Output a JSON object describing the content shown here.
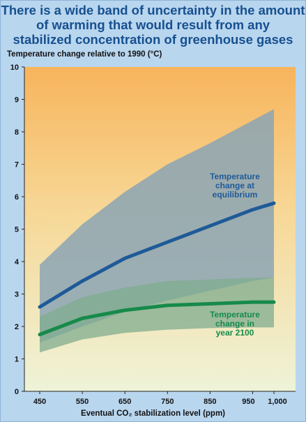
{
  "title": "There is a wide band of uncertainty in the amount\nof warming that would result from any\nstabilized concentration of greenhouse gases",
  "chart_data": {
    "type": "area",
    "title": "There is a wide band of uncertainty in the amount of warming that would result from any stabilized concentration of greenhouse gases",
    "ylabel": "Temperature change relative to 1990 (°C)",
    "xlabel": "Eventual CO₂ stabilization level (ppm)",
    "xlim": [
      450,
      1000
    ],
    "ylim": [
      0,
      10
    ],
    "x_ticks": [
      "450",
      "550",
      "650",
      "750",
      "850",
      "950",
      "1,000"
    ],
    "x_tick_values": [
      450,
      550,
      650,
      750,
      850,
      950,
      1000
    ],
    "y_ticks": [
      "0",
      "1",
      "2",
      "3",
      "4",
      "5",
      "6",
      "7",
      "8",
      "9",
      "10"
    ],
    "y_tick_values": [
      0,
      1,
      2,
      3,
      4,
      5,
      6,
      7,
      8,
      9,
      10
    ],
    "x": [
      450,
      550,
      650,
      750,
      850,
      950,
      1000
    ],
    "series": [
      {
        "name": "Temperature change at equilibrium",
        "label_lines": [
          "Temperature",
          "change at",
          "equilibrium"
        ],
        "color": "#1f5a98",
        "values": [
          2.6,
          3.4,
          4.1,
          4.6,
          5.1,
          5.6,
          5.8
        ],
        "band_low": [
          1.5,
          2.0,
          2.45,
          2.8,
          3.1,
          3.4,
          3.5
        ],
        "band_high": [
          3.9,
          5.15,
          6.15,
          7.0,
          7.65,
          8.35,
          8.7
        ],
        "band_color": "#8ba5b4"
      },
      {
        "name": "Temperature change in year 2100",
        "label_lines": [
          "Temperature",
          "change in",
          "year 2100"
        ],
        "color": "#168a4a",
        "values": [
          1.75,
          2.25,
          2.5,
          2.65,
          2.7,
          2.75,
          2.75
        ],
        "band_low": [
          1.2,
          1.6,
          1.8,
          1.9,
          1.95,
          1.97,
          1.97
        ],
        "band_high": [
          2.3,
          2.9,
          3.2,
          3.4,
          3.45,
          3.5,
          3.5
        ],
        "band_color": "#7fac8f"
      }
    ],
    "grid": false,
    "background_gradient": [
      "#f7b45c",
      "#eef3d8"
    ]
  }
}
